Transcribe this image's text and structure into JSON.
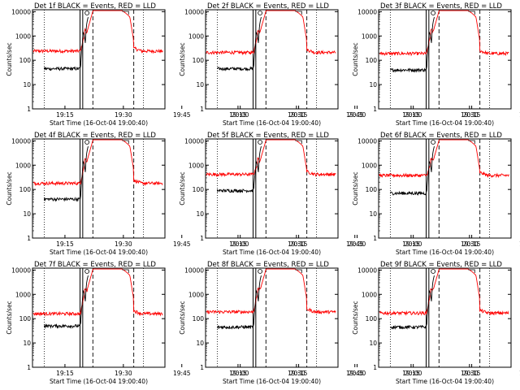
{
  "page": {
    "background": "#ffffff",
    "axis_color": "#000000"
  },
  "common": {
    "ylabel": "Counts/sec",
    "xlabel": "Start Time (16-Oct-04 19:00:40)",
    "x_ticks": [
      "19:15",
      "19:30",
      "19:45",
      "20:00",
      "20:15",
      "20:30"
    ],
    "y_ticks": [
      "1",
      "10",
      "100",
      "1000",
      "10000"
    ],
    "ylim": [
      1,
      12000
    ],
    "xlim_minutes": [
      6,
      40
    ],
    "y_scale": "log",
    "colors": {
      "events": "#000000",
      "lld": "#ff0000"
    },
    "dotted_lines_minutes": [
      9,
      34.5
    ],
    "solid_lines_minutes": [
      18.2,
      18.9
    ],
    "dashed_lines_minutes": [
      21.5,
      32
    ]
  },
  "chart_data": [
    {
      "type": "line",
      "title": "Det 1f BLACK = Events, RED = LLD",
      "series": [
        {
          "name": "Events",
          "color": "#000000",
          "base": 45
        },
        {
          "name": "LLD",
          "color": "#ff0000",
          "base": 240
        }
      ]
    },
    {
      "type": "line",
      "title": "Det 2f BLACK = Events, RED = LLD",
      "series": [
        {
          "name": "Events",
          "color": "#000000",
          "base": 45
        },
        {
          "name": "LLD",
          "color": "#ff0000",
          "base": 210
        }
      ]
    },
    {
      "type": "line",
      "title": "Det 3f BLACK = Events, RED = LLD",
      "series": [
        {
          "name": "Events",
          "color": "#000000",
          "base": 40
        },
        {
          "name": "LLD",
          "color": "#ff0000",
          "base": 190
        }
      ]
    },
    {
      "type": "line",
      "title": "Det 4f BLACK = Events, RED = LLD",
      "series": [
        {
          "name": "Events",
          "color": "#000000",
          "base": 40
        },
        {
          "name": "LLD",
          "color": "#ff0000",
          "base": 180
        }
      ]
    },
    {
      "type": "line",
      "title": "Det 5f BLACK = Events, RED = LLD",
      "series": [
        {
          "name": "Events",
          "color": "#000000",
          "base": 90
        },
        {
          "name": "LLD",
          "color": "#ff0000",
          "base": 420
        }
      ]
    },
    {
      "type": "line",
      "title": "Det 6f BLACK = Events, RED = LLD",
      "series": [
        {
          "name": "Events",
          "color": "#000000",
          "base": 70
        },
        {
          "name": "LLD",
          "color": "#ff0000",
          "base": 380
        }
      ]
    },
    {
      "type": "line",
      "title": "Det 7f BLACK = Events, RED = LLD",
      "series": [
        {
          "name": "Events",
          "color": "#000000",
          "base": 50
        },
        {
          "name": "LLD",
          "color": "#ff0000",
          "base": 160
        }
      ]
    },
    {
      "type": "line",
      "title": "Det 8f BLACK = Events, RED = LLD",
      "series": [
        {
          "name": "Events",
          "color": "#000000",
          "base": 45
        },
        {
          "name": "LLD",
          "color": "#ff0000",
          "base": 190
        }
      ]
    },
    {
      "type": "line",
      "title": "Det 9f BLACK = Events, RED = LLD",
      "series": [
        {
          "name": "Events",
          "color": "#000000",
          "base": 45
        },
        {
          "name": "LLD",
          "color": "#ff0000",
          "base": 170
        }
      ]
    }
  ]
}
